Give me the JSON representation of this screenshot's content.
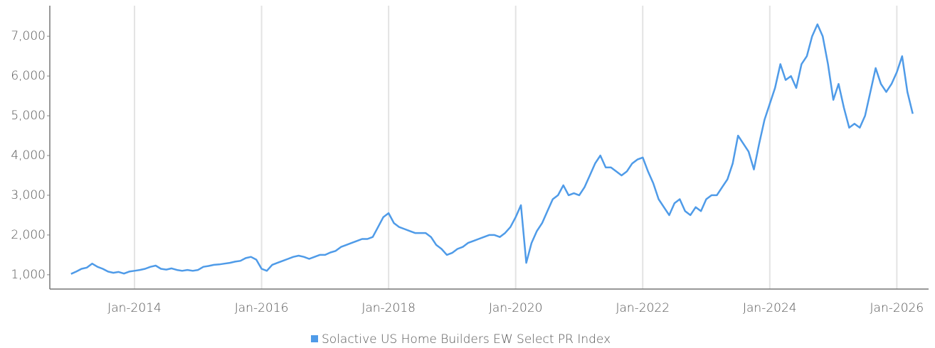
{
  "chart_data": {
    "type": "line",
    "x": [
      "2013-01",
      "2013-02",
      "2013-03",
      "2013-04",
      "2013-05",
      "2013-06",
      "2013-07",
      "2013-08",
      "2013-09",
      "2013-10",
      "2013-11",
      "2013-12",
      "2014-01",
      "2014-02",
      "2014-03",
      "2014-04",
      "2014-05",
      "2014-06",
      "2014-07",
      "2014-08",
      "2014-09",
      "2014-10",
      "2014-11",
      "2014-12",
      "2015-01",
      "2015-02",
      "2015-03",
      "2015-04",
      "2015-05",
      "2015-06",
      "2015-07",
      "2015-08",
      "2015-09",
      "2015-10",
      "2015-11",
      "2015-12",
      "2016-01",
      "2016-02",
      "2016-03",
      "2016-04",
      "2016-05",
      "2016-06",
      "2016-07",
      "2016-08",
      "2016-09",
      "2016-10",
      "2016-11",
      "2016-12",
      "2017-01",
      "2017-02",
      "2017-03",
      "2017-04",
      "2017-05",
      "2017-06",
      "2017-07",
      "2017-08",
      "2017-09",
      "2017-10",
      "2017-11",
      "2017-12",
      "2018-01",
      "2018-02",
      "2018-03",
      "2018-04",
      "2018-05",
      "2018-06",
      "2018-07",
      "2018-08",
      "2018-09",
      "2018-10",
      "2018-11",
      "2018-12",
      "2019-01",
      "2019-02",
      "2019-03",
      "2019-04",
      "2019-05",
      "2019-06",
      "2019-07",
      "2019-08",
      "2019-09",
      "2019-10",
      "2019-11",
      "2019-12",
      "2020-01",
      "2020-02",
      "2020-03",
      "2020-04",
      "2020-05",
      "2020-06",
      "2020-07",
      "2020-08",
      "2020-09",
      "2020-10",
      "2020-11",
      "2020-12",
      "2021-01",
      "2021-02",
      "2021-03",
      "2021-04",
      "2021-05",
      "2021-06",
      "2021-07",
      "2021-08",
      "2021-09",
      "2021-10",
      "2021-11",
      "2021-12",
      "2022-01",
      "2022-02",
      "2022-03",
      "2022-04",
      "2022-05",
      "2022-06",
      "2022-07",
      "2022-08",
      "2022-09",
      "2022-10",
      "2022-11",
      "2022-12",
      "2023-01",
      "2023-02",
      "2023-03",
      "2023-04",
      "2023-05",
      "2023-06",
      "2023-07",
      "2023-08",
      "2023-09",
      "2023-10",
      "2023-11",
      "2023-12",
      "2024-01",
      "2024-02",
      "2024-03",
      "2024-04",
      "2024-05",
      "2024-06",
      "2024-07",
      "2024-08",
      "2024-09",
      "2024-10",
      "2024-11",
      "2024-12",
      "2025-01",
      "2025-02",
      "2025-03",
      "2025-04",
      "2025-05",
      "2025-06",
      "2025-07",
      "2025-08",
      "2025-09",
      "2025-10",
      "2025-11",
      "2025-12",
      "2026-01",
      "2026-02",
      "2026-03",
      "2026-04"
    ],
    "series": [
      {
        "name": "Solactive US Home Builders EW Select PR Index",
        "color": "#4f9be8",
        "values": [
          1020,
          1080,
          1150,
          1180,
          1280,
          1200,
          1150,
          1080,
          1050,
          1070,
          1030,
          1080,
          1100,
          1120,
          1150,
          1200,
          1230,
          1150,
          1130,
          1160,
          1120,
          1100,
          1120,
          1100,
          1120,
          1200,
          1220,
          1250,
          1260,
          1280,
          1300,
          1330,
          1350,
          1420,
          1450,
          1380,
          1150,
          1100,
          1250,
          1300,
          1350,
          1400,
          1450,
          1480,
          1450,
          1400,
          1450,
          1500,
          1500,
          1560,
          1600,
          1700,
          1750,
          1800,
          1850,
          1900,
          1900,
          1950,
          2200,
          2450,
          2550,
          2300,
          2200,
          2150,
          2100,
          2050,
          2050,
          2050,
          1950,
          1750,
          1650,
          1500,
          1550,
          1650,
          1700,
          1800,
          1850,
          1900,
          1950,
          2000,
          2000,
          1950,
          2050,
          2200,
          2450,
          2750,
          1300,
          1800,
          2100,
          2300,
          2600,
          2900,
          3000,
          3250,
          3000,
          3050,
          3000,
          3200,
          3500,
          3800,
          4000,
          3700,
          3700,
          3600,
          3500,
          3600,
          3800,
          3900,
          3950,
          3600,
          3300,
          2900,
          2700,
          2500,
          2800,
          2900,
          2600,
          2500,
          2700,
          2600,
          2900,
          3000,
          3000,
          3200,
          3400,
          3800,
          4500,
          4300,
          4100,
          3650,
          4300,
          4900,
          5300,
          5700,
          6300,
          5900,
          6000,
          5700,
          6300,
          6500,
          7000,
          7300,
          7000,
          6300,
          5400,
          5800,
          5200,
          4700,
          4800,
          4700,
          5000,
          5600,
          6200,
          5800,
          5600,
          5800,
          6100,
          6500,
          5600,
          5050
        ]
      }
    ],
    "xlim": [
      "2012-09",
      "2026-07"
    ],
    "xticks": [
      {
        "value": "2014-01",
        "label": "Jan-2014"
      },
      {
        "value": "2016-01",
        "label": "Jan-2016"
      },
      {
        "value": "2018-01",
        "label": "Jan-2018"
      },
      {
        "value": "2020-01",
        "label": "Jan-2020"
      },
      {
        "value": "2022-01",
        "label": "Jan-2022"
      },
      {
        "value": "2024-01",
        "label": "Jan-2024"
      },
      {
        "value": "2026-01",
        "label": "Jan-2026"
      }
    ],
    "ylim": [
      640,
      7770
    ],
    "yticks": [
      {
        "value": 1000,
        "label": "1,000"
      },
      {
        "value": 2000,
        "label": "2,000"
      },
      {
        "value": 3000,
        "label": "3,000"
      },
      {
        "value": 4000,
        "label": "4,000"
      },
      {
        "value": 5000,
        "label": "5,000"
      },
      {
        "value": 6000,
        "label": "6,000"
      },
      {
        "value": 7000,
        "label": "7,000"
      }
    ],
    "grid": "x",
    "legend": "bottom"
  }
}
